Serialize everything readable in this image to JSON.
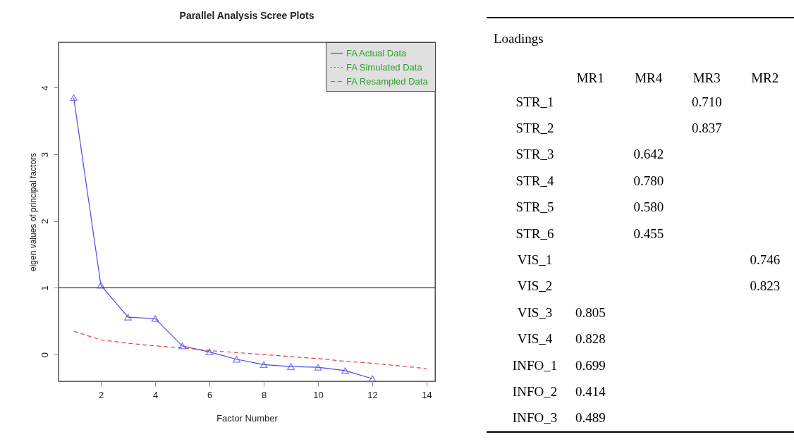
{
  "chart_data": [
    {
      "type": "line",
      "title": "Parallel Analysis Scree Plots",
      "xlabel": "Factor Number",
      "ylabel": "eigen values of principal factors",
      "x": [
        1,
        2,
        3,
        4,
        5,
        6,
        7,
        8,
        9,
        10,
        11,
        12,
        13,
        14
      ],
      "series": [
        {
          "name": "FA  Actual Data",
          "color": "#4b4bf0",
          "line_style": "solid",
          "marker": "triangle",
          "x": [
            1,
            2,
            3,
            4,
            5,
            6,
            7,
            8,
            9,
            10,
            11,
            12
          ],
          "values": [
            3.85,
            1.04,
            0.56,
            0.54,
            0.13,
            0.04,
            -0.07,
            -0.15,
            -0.18,
            -0.19,
            -0.24,
            -0.36
          ]
        },
        {
          "name": "FA  Simulated Data",
          "color": "#f03c3c",
          "line_style": "dotted",
          "values": [
            null,
            null,
            null,
            null,
            null,
            null,
            null,
            null,
            null,
            null,
            null,
            null,
            null,
            null
          ]
        },
        {
          "name": "FA  Resampled Data",
          "color": "#f03c3c",
          "line_style": "dashed",
          "values": [
            0.35,
            0.22,
            0.17,
            0.13,
            0.1,
            0.06,
            0.03,
            0.0,
            -0.03,
            -0.06,
            -0.1,
            -0.13,
            -0.17,
            -0.21
          ]
        }
      ],
      "xlim": [
        0.44,
        14.31
      ],
      "ylim": [
        -0.4,
        4.68
      ],
      "xticks": [
        2,
        4,
        6,
        8,
        10,
        12,
        14
      ],
      "yticks": [
        0,
        1,
        2,
        3,
        4
      ],
      "ref_lines": [
        {
          "axis": "y",
          "value": 1,
          "color": "#333333"
        }
      ],
      "grid": false,
      "legend": "top right"
    },
    {
      "type": "heatmap",
      "title": "Loadings",
      "categories": [
        "MR1",
        "MR4",
        "MR3",
        "MR2"
      ],
      "y_categories": [
        "STR_1",
        "STR_2",
        "STR_3",
        "STR_4",
        "STR_5",
        "STR_6",
        "VIS_1",
        "VIS_2",
        "VIS_3",
        "VIS_4",
        "INFO_1",
        "INFO_2",
        "INFO_3"
      ],
      "cells": [
        [
          null,
          null,
          0.71,
          null
        ],
        [
          null,
          null,
          0.837,
          null
        ],
        [
          null,
          0.642,
          null,
          null
        ],
        [
          null,
          0.78,
          null,
          null
        ],
        [
          null,
          0.58,
          null,
          null
        ],
        [
          null,
          0.455,
          null,
          null
        ],
        [
          null,
          null,
          null,
          0.746
        ],
        [
          null,
          null,
          null,
          0.823
        ],
        [
          0.805,
          null,
          null,
          null
        ],
        [
          0.828,
          null,
          null,
          null
        ],
        [
          0.699,
          null,
          null,
          null
        ],
        [
          0.414,
          null,
          null,
          null
        ],
        [
          0.489,
          null,
          null,
          null
        ]
      ],
      "cell_labels": [
        [
          null,
          null,
          "0.710",
          null
        ],
        [
          null,
          null,
          "0.837",
          null
        ],
        [
          null,
          "0.642",
          null,
          null
        ],
        [
          null,
          "0.780",
          null,
          null
        ],
        [
          null,
          "0.580",
          null,
          null
        ],
        [
          null,
          "0.455",
          null,
          null
        ],
        [
          null,
          null,
          null,
          "0.746"
        ],
        [
          null,
          null,
          null,
          "0.823"
        ],
        [
          "0.805",
          null,
          null,
          null
        ],
        [
          "0.828",
          null,
          null,
          null
        ],
        [
          "0.699",
          null,
          null,
          null
        ],
        [
          "0.414",
          null,
          null,
          null
        ],
        [
          "0.489",
          null,
          null,
          null
        ]
      ],
      "data_labels": true
    }
  ]
}
